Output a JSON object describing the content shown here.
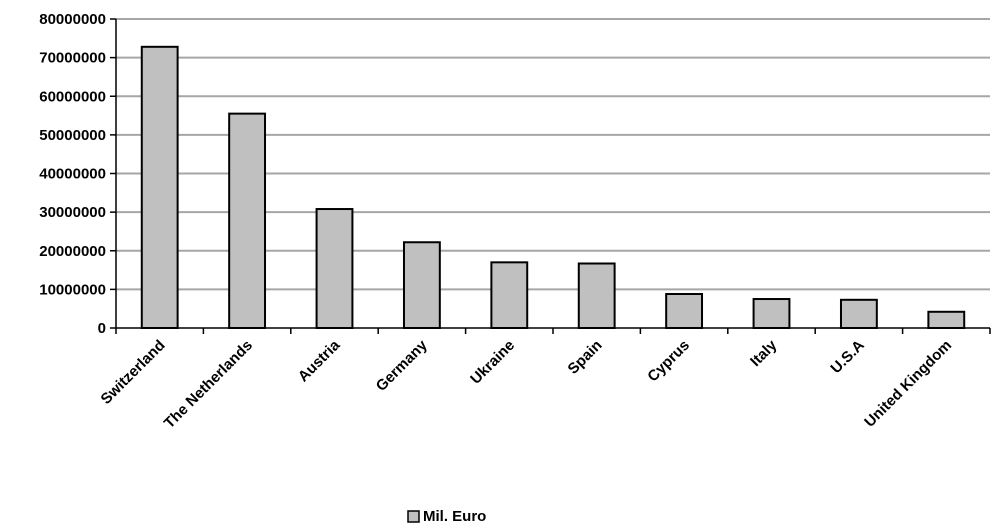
{
  "chart_data": {
    "type": "bar",
    "categories": [
      "Switzerland",
      "The Netherlands",
      "Austria",
      "Germany",
      "Ukraine",
      "Spain",
      "Cyprus",
      "Italy",
      "U.S.A",
      "United Kingdom"
    ],
    "series": [
      {
        "name": "Mil. Euro",
        "values": [
          72800000,
          55500000,
          30800000,
          22200000,
          17000000,
          16700000,
          8800000,
          7500000,
          7300000,
          4200000
        ]
      }
    ],
    "yticks": [
      "0",
      "10000000",
      "20000000",
      "30000000",
      "40000000",
      "50000000",
      "60000000",
      "70000000",
      "80000000"
    ],
    "ylim": [
      0,
      80000000
    ],
    "grid": true,
    "legend_position": "bottom",
    "colors": {
      "bar_fill": "#c0c0c0",
      "bar_stroke": "#000000",
      "grid": "#a6a6a6",
      "axis": "#000000"
    }
  }
}
